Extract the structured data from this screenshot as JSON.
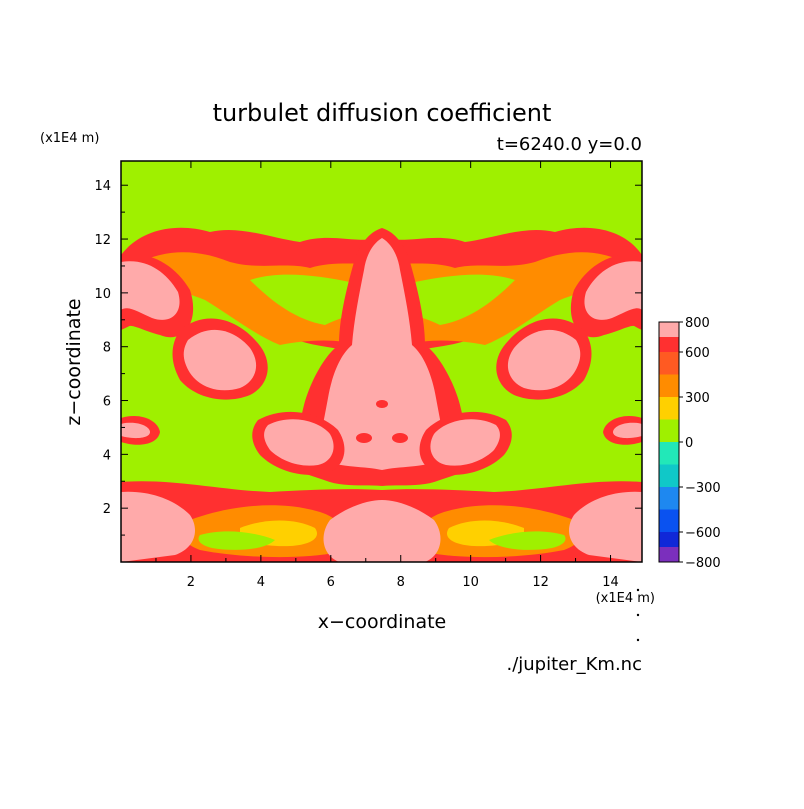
{
  "chart_data": {
    "type": "heatmap",
    "title": "turbulet diffusion coefficient",
    "subtitle": "t=6240.0 y=0.0",
    "xlabel": "x−coordinate",
    "ylabel": "z−coordinate",
    "x_unit": "(x1E4 m)",
    "y_unit": "(x1E4 m)",
    "source_label": "./jupiter_Km.nc",
    "xlim": [
      0,
      14.9
    ],
    "ylim": [
      0,
      14.9
    ],
    "x_ticks": [
      2,
      4,
      6,
      8,
      10,
      12,
      14
    ],
    "y_ticks": [
      2,
      4,
      6,
      8,
      10,
      12,
      14
    ],
    "colorbar": {
      "levels": [
        -800,
        -700,
        -600,
        -450,
        -300,
        -150,
        0,
        150,
        300,
        450,
        600,
        700,
        800
      ],
      "colors": [
        "#7b2fbd",
        "#1028d8",
        "#0a52f0",
        "#1e88f0",
        "#10c8c8",
        "#22e8b8",
        "#9ff000",
        "#ffd000",
        "#ff8c00",
        "#ff5a22",
        "#ff3030",
        "#ffaaaa"
      ],
      "tick_labels": [
        "800",
        "600",
        "300",
        "0",
        "−300",
        "−600",
        "−800"
      ],
      "tick_values": [
        800,
        600,
        300,
        0,
        -300,
        -600,
        -800
      ]
    },
    "background_value": 0,
    "regions": [
      {
        "name": "bottom band",
        "value": 800
      },
      {
        "name": "central plume",
        "value": 800
      },
      {
        "name": "left vortex",
        "value": 800
      },
      {
        "name": "right vortex",
        "value": 800
      },
      {
        "name": "upper wings",
        "value": 600
      }
    ]
  }
}
